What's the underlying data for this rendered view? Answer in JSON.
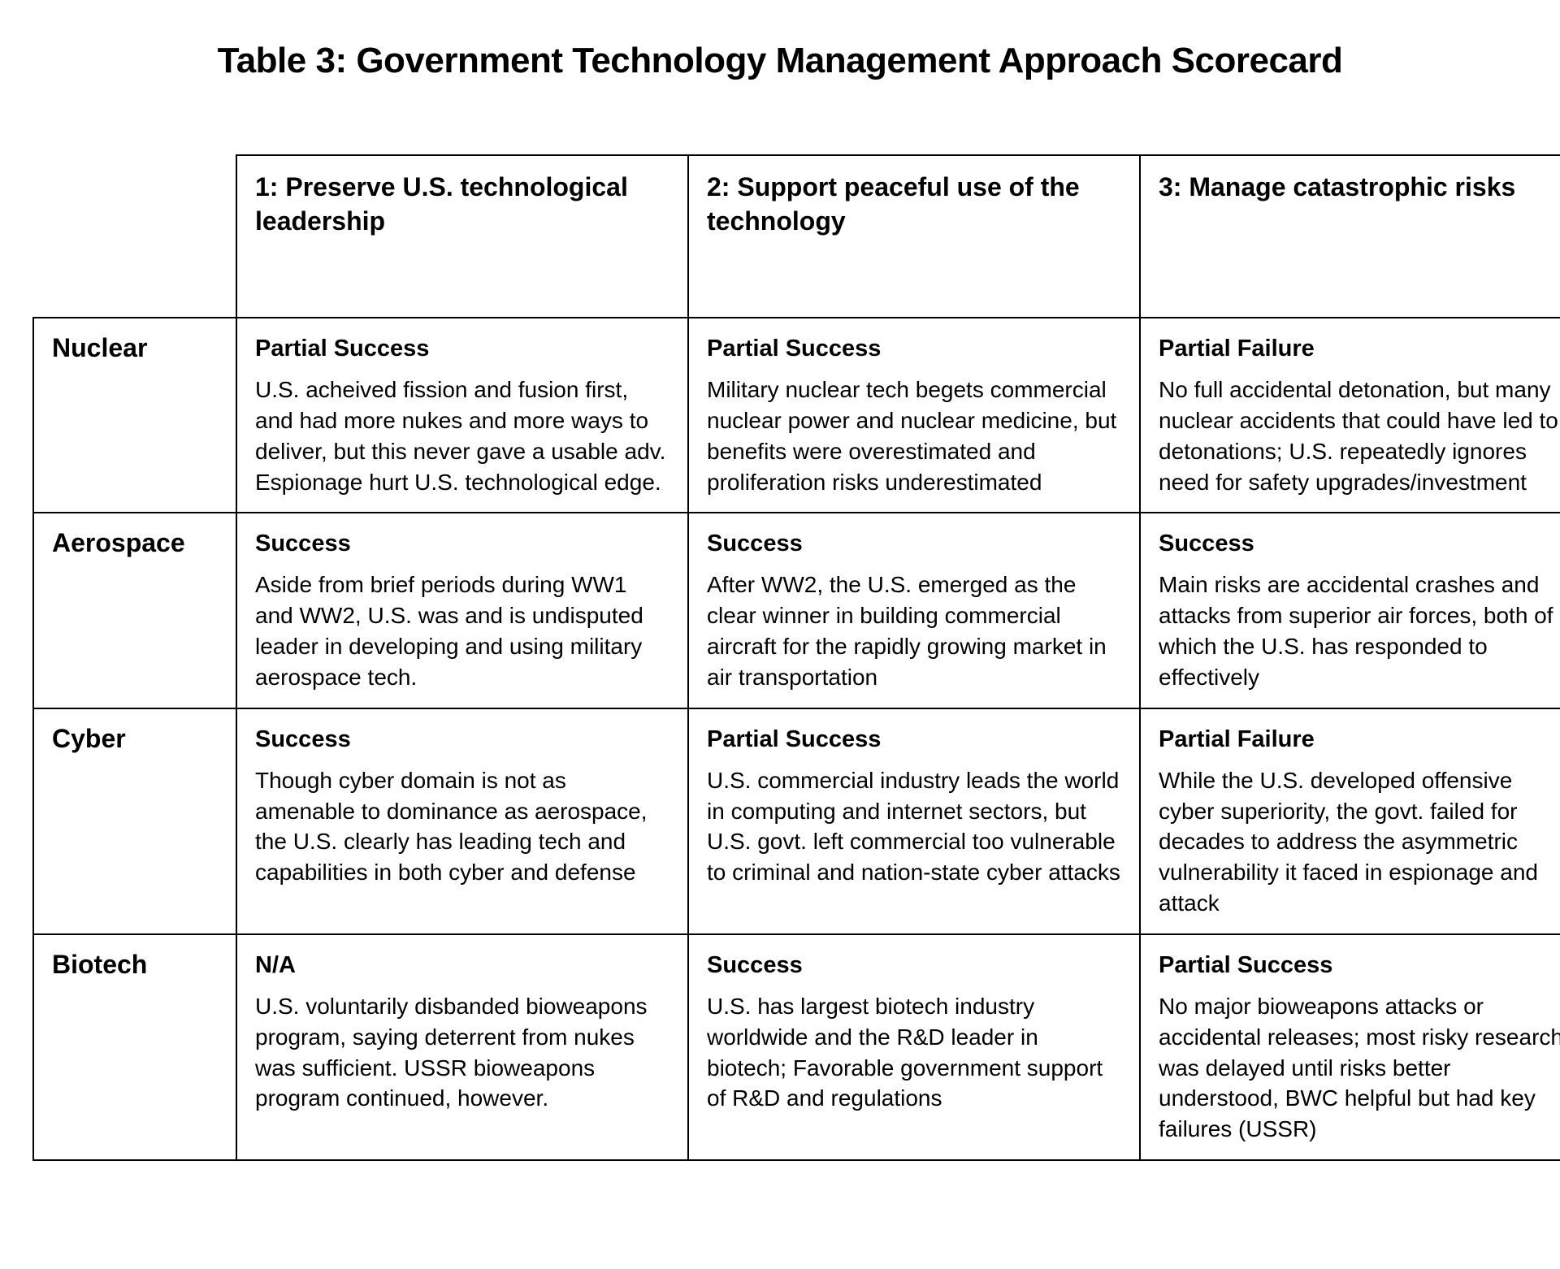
{
  "title": "Table 3: Government Technology Management Approach Scorecard",
  "columns": [
    {
      "label": "1: Preserve U.S. technological leadership"
    },
    {
      "label": "2: Support peaceful use of the technology"
    },
    {
      "label": "3: Manage catastrophic risks"
    }
  ],
  "rows": [
    {
      "label": "Nuclear",
      "cells": [
        {
          "rating": "Partial Success",
          "description": "U.S. acheived fission and fusion first, and had more nukes and more ways to deliver, but this never gave a usable adv. Espionage hurt U.S. technological edge."
        },
        {
          "rating": "Partial Success",
          "description": "Military nuclear tech begets commercial nuclear power and nuclear medicine, but benefits were overestimated and proliferation risks underestimated"
        },
        {
          "rating": "Partial Failure",
          "description": "No full accidental detonation, but many nuclear accidents that could have led to detonations; U.S. repeatedly ignores need for safety upgrades/investment"
        }
      ]
    },
    {
      "label": "Aerospace",
      "cells": [
        {
          "rating": "Success",
          "description": "Aside from brief periods during WW1 and WW2, U.S. was and is undisputed leader in developing and using military aerospace tech."
        },
        {
          "rating": "Success",
          "description": "After WW2, the U.S. emerged as the clear winner in building commercial aircraft for the rapidly growing market in air transportation"
        },
        {
          "rating": "Success",
          "description": "Main risks are accidental crashes and attacks from superior air forces, both of which the U.S. has responded to effectively"
        }
      ]
    },
    {
      "label": "Cyber",
      "cells": [
        {
          "rating": "Success",
          "description": "Though cyber domain is not as amenable to dominance as aerospace, the U.S. clearly has leading tech and capabilities in both cyber and defense"
        },
        {
          "rating": "Partial Success",
          "description": "U.S. commercial industry leads the world in computing and internet sectors, but U.S. govt. left commercial too vulnerable to criminal and nation-state cyber attacks"
        },
        {
          "rating": "Partial Failure",
          "description": "While the U.S. developed offensive cyber superiority, the govt. failed for decades to address the asymmetric vulnerability it faced in espionage and attack"
        }
      ]
    },
    {
      "label": "Biotech",
      "cells": [
        {
          "rating": "N/A",
          "description": "U.S. voluntarily disbanded bioweapons program, saying deterrent from nukes was sufficient. USSR bioweapons program continued, however."
        },
        {
          "rating": "Success",
          "description": "U.S. has largest biotech industry worldwide and the R&D leader in biotech; Favorable government support of R&D and regulations"
        },
        {
          "rating": "Partial Success",
          "description": "No major bioweapons attacks or accidental releases; most risky research was delayed until risks better understood, BWC helpful but had key failures (USSR)"
        }
      ]
    }
  ],
  "styling": {
    "title_fontsize": 44,
    "title_fontweight": 900,
    "header_fontsize": 32,
    "header_fontweight": 700,
    "rating_fontsize": 29,
    "rating_fontweight": 700,
    "body_fontsize": 28,
    "body_fontweight": 400,
    "border_color": "#000000",
    "border_width": 2,
    "background_color": "#ffffff",
    "text_color": "#000000",
    "row_header_width": 250,
    "data_col_width": 556,
    "header_row_height": 200
  }
}
